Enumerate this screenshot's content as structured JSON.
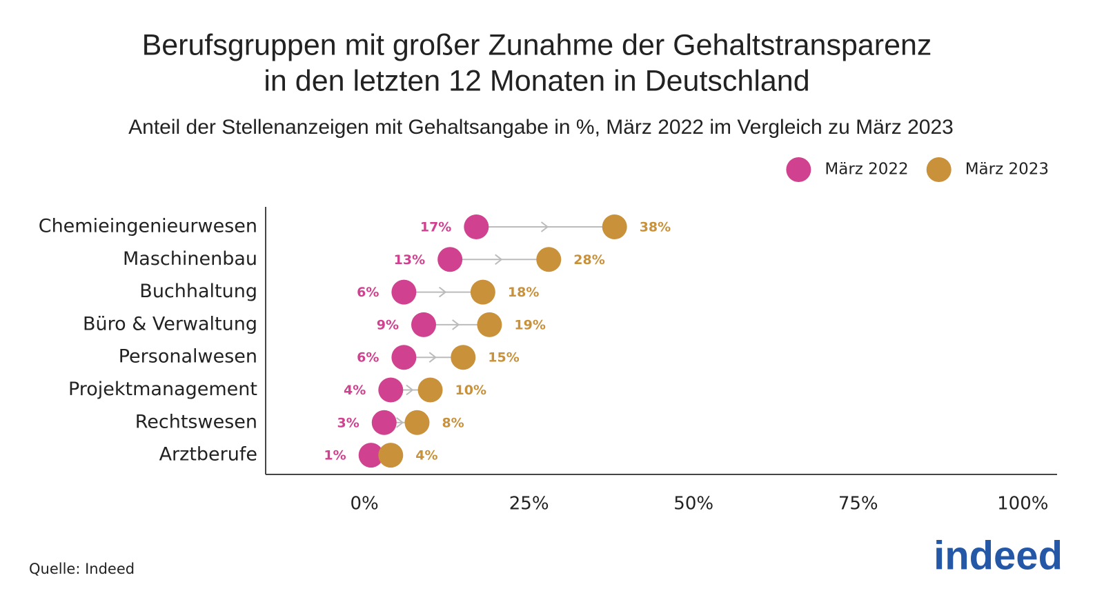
{
  "chart_data": {
    "type": "dumbbell",
    "title": [
      "Berufsgruppen mit großer Zunahme der Gehaltstransparenz",
      "in den letzten 12 Monaten in Deutschland"
    ],
    "subtitle": "Anteil der Stellenanzeigen mit Gehaltsangabe in %, März 2022 im Vergleich zu März 2023",
    "categories": [
      "Chemieingenieurwesen",
      "Maschinenbau",
      "Buchhaltung",
      "Büro & Verwaltung",
      "Personalwesen",
      "Projektmanagement",
      "Rechtswesen",
      "Arztberufe"
    ],
    "series": [
      {
        "name": "März 2022",
        "color": "#d0428f",
        "values": [
          17,
          13,
          6,
          9,
          6,
          4,
          3,
          1
        ],
        "value_labels": [
          "17%",
          "13%",
          "6%",
          "9%",
          "6%",
          "4%",
          "3%",
          "1%"
        ]
      },
      {
        "name": "März 2023",
        "color": "#c8913a",
        "values": [
          38,
          28,
          18,
          19,
          15,
          10,
          8,
          4
        ],
        "value_labels": [
          "38%",
          "28%",
          "18%",
          "19%",
          "15%",
          "10%",
          "8%",
          "4%"
        ]
      }
    ],
    "xlim": [
      -15,
      105
    ],
    "xticks": [
      {
        "value": 0,
        "label": "0%"
      },
      {
        "value": 25,
        "label": "25%"
      },
      {
        "value": 50,
        "label": "50%"
      },
      {
        "value": 75,
        "label": "75%"
      },
      {
        "value": 100,
        "label": "100%"
      }
    ],
    "legend": "top-right",
    "source": "Quelle: Indeed",
    "logo": "indeed"
  }
}
